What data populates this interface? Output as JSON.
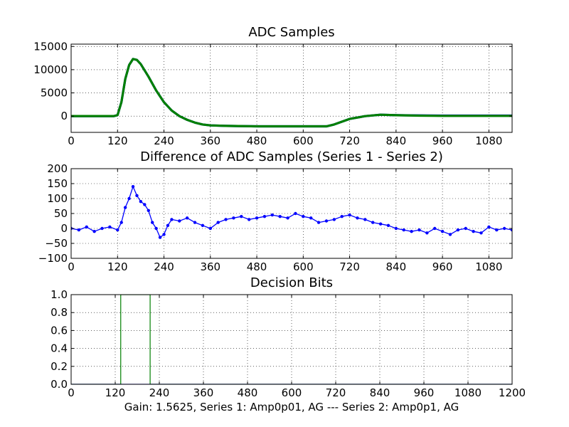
{
  "caption": "Gain: 1.5625, Series 1: Amp0p01, AG --- Series 2: Amp0p1, AG",
  "colors": {
    "series1": "#0000ff",
    "series2": "#008000"
  },
  "chart_data": [
    {
      "type": "line",
      "title": "ADC Samples",
      "xlim": [
        0,
        1140
      ],
      "ylim": [
        -3500,
        15500
      ],
      "x_ticks": [
        0,
        120,
        240,
        360,
        480,
        600,
        720,
        840,
        960,
        1080
      ],
      "x_tick_labels": [
        "0",
        "120",
        "240",
        "360",
        "480",
        "600",
        "720",
        "840",
        "960",
        "1080"
      ],
      "y_ticks": [
        0,
        5000,
        10000,
        15000
      ],
      "y_tick_labels": [
        "0",
        "5000",
        "10000",
        "15000"
      ],
      "grid": true,
      "series": [
        {
          "name": "Series 1",
          "color": "#0000ff",
          "x": [
            0,
            110,
            120,
            130,
            140,
            150,
            160,
            170,
            180,
            200,
            220,
            240,
            260,
            280,
            300,
            320,
            340,
            360,
            400,
            480,
            600,
            660,
            680,
            700,
            720,
            760,
            800,
            840,
            900,
            960,
            1080,
            1140
          ],
          "y": [
            0,
            0,
            200,
            3000,
            8000,
            11000,
            12300,
            12100,
            11200,
            8500,
            5500,
            3000,
            1200,
            0,
            -800,
            -1400,
            -1800,
            -2000,
            -2100,
            -2200,
            -2200,
            -2200,
            -1800,
            -1200,
            -600,
            0,
            300,
            200,
            150,
            100,
            100,
            100
          ]
        },
        {
          "name": "Series 2",
          "color": "#008000",
          "x": [
            0,
            110,
            120,
            130,
            140,
            150,
            160,
            170,
            180,
            200,
            220,
            240,
            260,
            280,
            300,
            320,
            340,
            360,
            400,
            480,
            600,
            660,
            680,
            700,
            720,
            760,
            800,
            840,
            900,
            960,
            1080,
            1140
          ],
          "y": [
            0,
            0,
            200,
            3000,
            8000,
            11000,
            12300,
            12100,
            11200,
            8500,
            5500,
            3000,
            1200,
            0,
            -800,
            -1400,
            -1800,
            -2000,
            -2100,
            -2200,
            -2200,
            -2200,
            -1800,
            -1200,
            -600,
            0,
            300,
            200,
            100,
            50,
            50,
            50
          ]
        }
      ]
    },
    {
      "type": "line",
      "title": "Difference of ADC Samples (Series 1 - Series 2)",
      "xlim": [
        0,
        1140
      ],
      "ylim": [
        -100,
        200
      ],
      "x_ticks": [
        0,
        120,
        240,
        360,
        480,
        600,
        720,
        840,
        960,
        1080
      ],
      "x_tick_labels": [
        "0",
        "120",
        "240",
        "360",
        "480",
        "600",
        "720",
        "840",
        "960",
        "1080"
      ],
      "y_ticks": [
        -100,
        -50,
        0,
        50,
        100,
        150,
        200
      ],
      "y_tick_labels": [
        "−100",
        "−50",
        "0",
        "50",
        "100",
        "150",
        "200"
      ],
      "grid": true,
      "series": [
        {
          "name": "Series 1 - Series 2",
          "color": "#0000ff",
          "markers": true,
          "x": [
            0,
            20,
            40,
            60,
            80,
            100,
            120,
            130,
            140,
            150,
            160,
            170,
            180,
            190,
            200,
            210,
            220,
            230,
            240,
            250,
            260,
            280,
            300,
            320,
            340,
            360,
            380,
            400,
            420,
            440,
            460,
            480,
            500,
            520,
            540,
            560,
            580,
            600,
            620,
            640,
            660,
            680,
            700,
            720,
            740,
            760,
            780,
            800,
            820,
            840,
            860,
            880,
            900,
            920,
            940,
            960,
            980,
            1000,
            1020,
            1040,
            1060,
            1080,
            1100,
            1120,
            1140
          ],
          "y": [
            0,
            -5,
            5,
            -10,
            0,
            5,
            -5,
            20,
            70,
            100,
            140,
            110,
            90,
            80,
            60,
            20,
            0,
            -30,
            -20,
            10,
            30,
            25,
            35,
            20,
            10,
            0,
            20,
            30,
            35,
            40,
            30,
            35,
            40,
            45,
            40,
            35,
            50,
            40,
            35,
            20,
            25,
            30,
            40,
            45,
            35,
            30,
            20,
            15,
            10,
            0,
            -5,
            -10,
            -5,
            -15,
            0,
            -10,
            -20,
            -5,
            0,
            -10,
            -15,
            5,
            -5,
            0,
            -5
          ]
        }
      ]
    },
    {
      "type": "line",
      "title": "Decision Bits",
      "xlim": [
        0,
        1200
      ],
      "ylim": [
        0,
        1
      ],
      "x_ticks": [
        0,
        120,
        240,
        360,
        480,
        600,
        720,
        840,
        960,
        1080,
        1200
      ],
      "x_tick_labels": [
        "0",
        "120",
        "240",
        "360",
        "480",
        "600",
        "720",
        "840",
        "960",
        "1080",
        "1200"
      ],
      "y_ticks": [
        0,
        0.2,
        0.4,
        0.6,
        0.8,
        1.0
      ],
      "y_tick_labels": [
        "0.0",
        "0.2",
        "0.4",
        "0.6",
        "0.8",
        "1.0"
      ],
      "grid": true,
      "series": [
        {
          "name": "Series 2",
          "color": "#008000",
          "x": [
            0,
            135,
            135,
            215,
            215,
            1200
          ],
          "y": [
            0,
            0,
            1,
            1,
            0,
            0
          ]
        },
        {
          "name": "Series 1",
          "color": "#0000ff",
          "x": [
            0,
            1200
          ],
          "y": [
            0,
            0
          ]
        }
      ]
    }
  ]
}
